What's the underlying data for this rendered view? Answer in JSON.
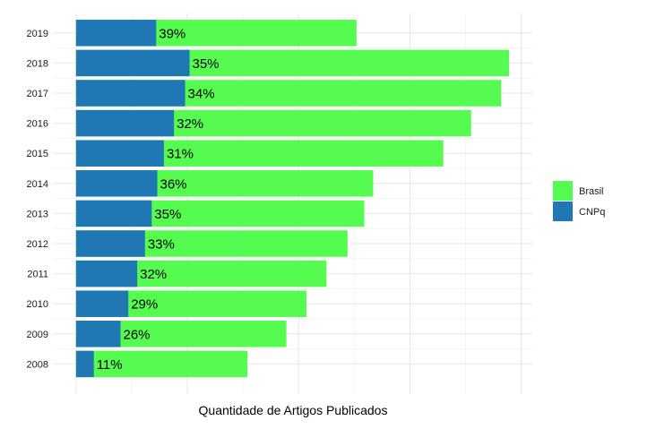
{
  "chart_data": {
    "type": "bar",
    "orientation": "horizontal",
    "stacking": "overlay",
    "categories": [
      "2019",
      "2018",
      "2017",
      "2016",
      "2015",
      "2014",
      "2013",
      "2012",
      "2011",
      "2010",
      "2009",
      "2008"
    ],
    "series": [
      {
        "name": "Brasil",
        "color": "#55fb4f",
        "values": [
          2520,
          3890,
          3820,
          3550,
          3300,
          2670,
          2590,
          2440,
          2250,
          2070,
          1890,
          1540
        ]
      },
      {
        "name": "CNPq",
        "color": "#1f78b4",
        "values": [
          720,
          1020,
          980,
          880,
          790,
          730,
          680,
          620,
          550,
          470,
          400,
          160
        ]
      }
    ],
    "labels": [
      "39%",
      "35%",
      "34%",
      "32%",
      "31%",
      "36%",
      "35%",
      "33%",
      "32%",
      "29%",
      "26%",
      "11%"
    ],
    "xlabel": "Quantidade de Artigos Publicados",
    "ylabel": "",
    "xlim": [
      -200,
      4100
    ],
    "grid": true,
    "legend_position": "right",
    "legend": [
      {
        "name": "Brasil",
        "color": "#55fb4f"
      },
      {
        "name": "CNPq",
        "color": "#1f78b4"
      }
    ]
  }
}
